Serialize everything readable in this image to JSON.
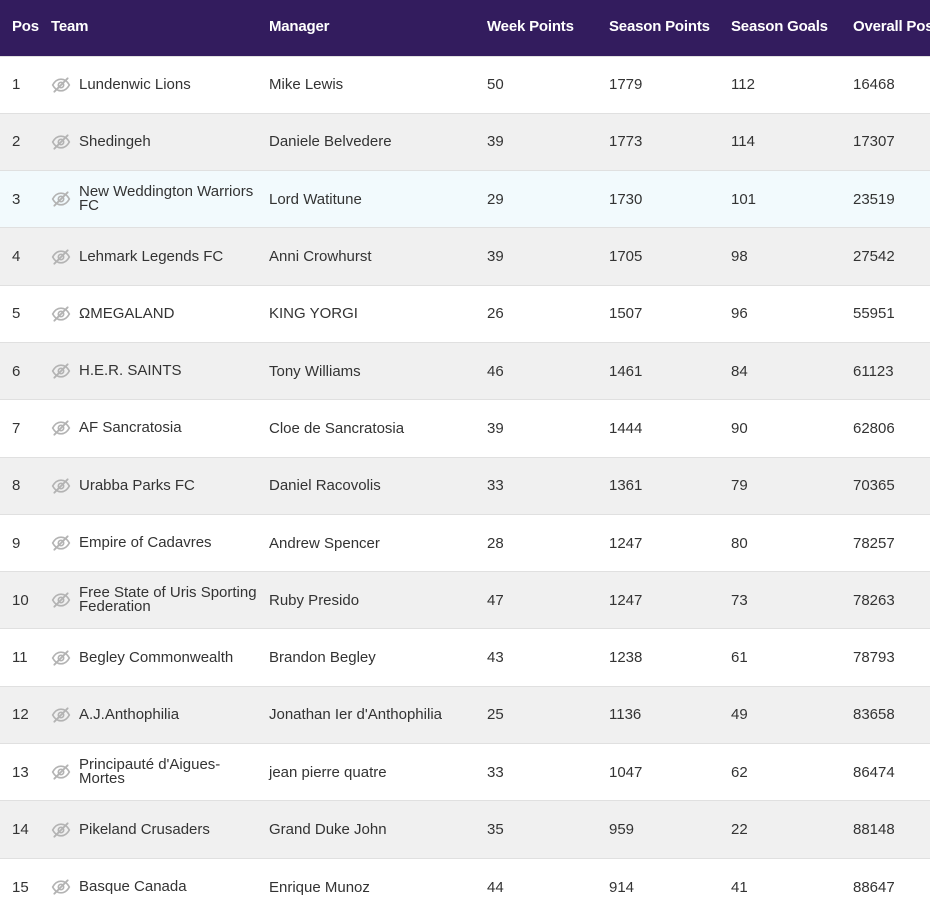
{
  "table": {
    "headers": {
      "pos": "Pos",
      "team": "Team",
      "manager": "Manager",
      "week_points": "Week Points",
      "season_points": "Season Points",
      "season_goals": "Season Goals",
      "overall_pos": "Overall Pos"
    },
    "header_bg": "#331c5e",
    "row_icon": "eye-slash-icon",
    "rows": [
      {
        "pos": "1",
        "team": "Lundenwic Lions",
        "manager": "Mike Lewis",
        "week_points": "50",
        "season_points": "1779",
        "season_goals": "112",
        "overall_pos": "16468"
      },
      {
        "pos": "2",
        "team": "Shedingeh",
        "manager": "Daniele Belvedere",
        "week_points": "39",
        "season_points": "1773",
        "season_goals": "114",
        "overall_pos": "17307"
      },
      {
        "pos": "3",
        "team": "New Weddington Warriors FC",
        "manager": "Lord Watitune",
        "week_points": "29",
        "season_points": "1730",
        "season_goals": "101",
        "overall_pos": "23519"
      },
      {
        "pos": "4",
        "team": "Lehmark Legends FC",
        "manager": "Anni Crowhurst",
        "week_points": "39",
        "season_points": "1705",
        "season_goals": "98",
        "overall_pos": "27542"
      },
      {
        "pos": "5",
        "team": "ΩMEGALAND",
        "manager": "KING YORGI",
        "week_points": "26",
        "season_points": "1507",
        "season_goals": "96",
        "overall_pos": "55951"
      },
      {
        "pos": "6",
        "team": "H.E.R. SAINTS",
        "manager": "Tony Williams",
        "week_points": "46",
        "season_points": "1461",
        "season_goals": "84",
        "overall_pos": "61123"
      },
      {
        "pos": "7",
        "team": "AF Sancratosia",
        "manager": "Cloe de Sancratosia",
        "week_points": "39",
        "season_points": "1444",
        "season_goals": "90",
        "overall_pos": "62806"
      },
      {
        "pos": "8",
        "team": "Urabba Parks FC",
        "manager": "Daniel Racovolis",
        "week_points": "33",
        "season_points": "1361",
        "season_goals": "79",
        "overall_pos": "70365"
      },
      {
        "pos": "9",
        "team": "Empire of Cadavres",
        "manager": "Andrew Spencer",
        "week_points": "28",
        "season_points": "1247",
        "season_goals": "80",
        "overall_pos": "78257"
      },
      {
        "pos": "10",
        "team": "Free State of Uris Sporting Federation",
        "manager": "Ruby Presido",
        "week_points": "47",
        "season_points": "1247",
        "season_goals": "73",
        "overall_pos": "78263"
      },
      {
        "pos": "11",
        "team": "Begley Commonwealth",
        "manager": "Brandon Begley",
        "week_points": "43",
        "season_points": "1238",
        "season_goals": "61",
        "overall_pos": "78793"
      },
      {
        "pos": "12",
        "team": "A.J.Anthophilia",
        "manager": "Jonathan Ier d'Anthophilia",
        "week_points": "25",
        "season_points": "1136",
        "season_goals": "49",
        "overall_pos": "83658"
      },
      {
        "pos": "13",
        "team": "Principauté d'Aigues-Mortes",
        "manager": "jean pierre quatre",
        "week_points": "33",
        "season_points": "1047",
        "season_goals": "62",
        "overall_pos": "86474"
      },
      {
        "pos": "14",
        "team": "Pikeland Crusaders",
        "manager": "Grand Duke John",
        "week_points": "35",
        "season_points": "959",
        "season_goals": "22",
        "overall_pos": "88148"
      },
      {
        "pos": "15",
        "team": "Basque Canada",
        "manager": "Enrique Munoz",
        "week_points": "44",
        "season_points": "914",
        "season_goals": "41",
        "overall_pos": "88647"
      }
    ]
  }
}
